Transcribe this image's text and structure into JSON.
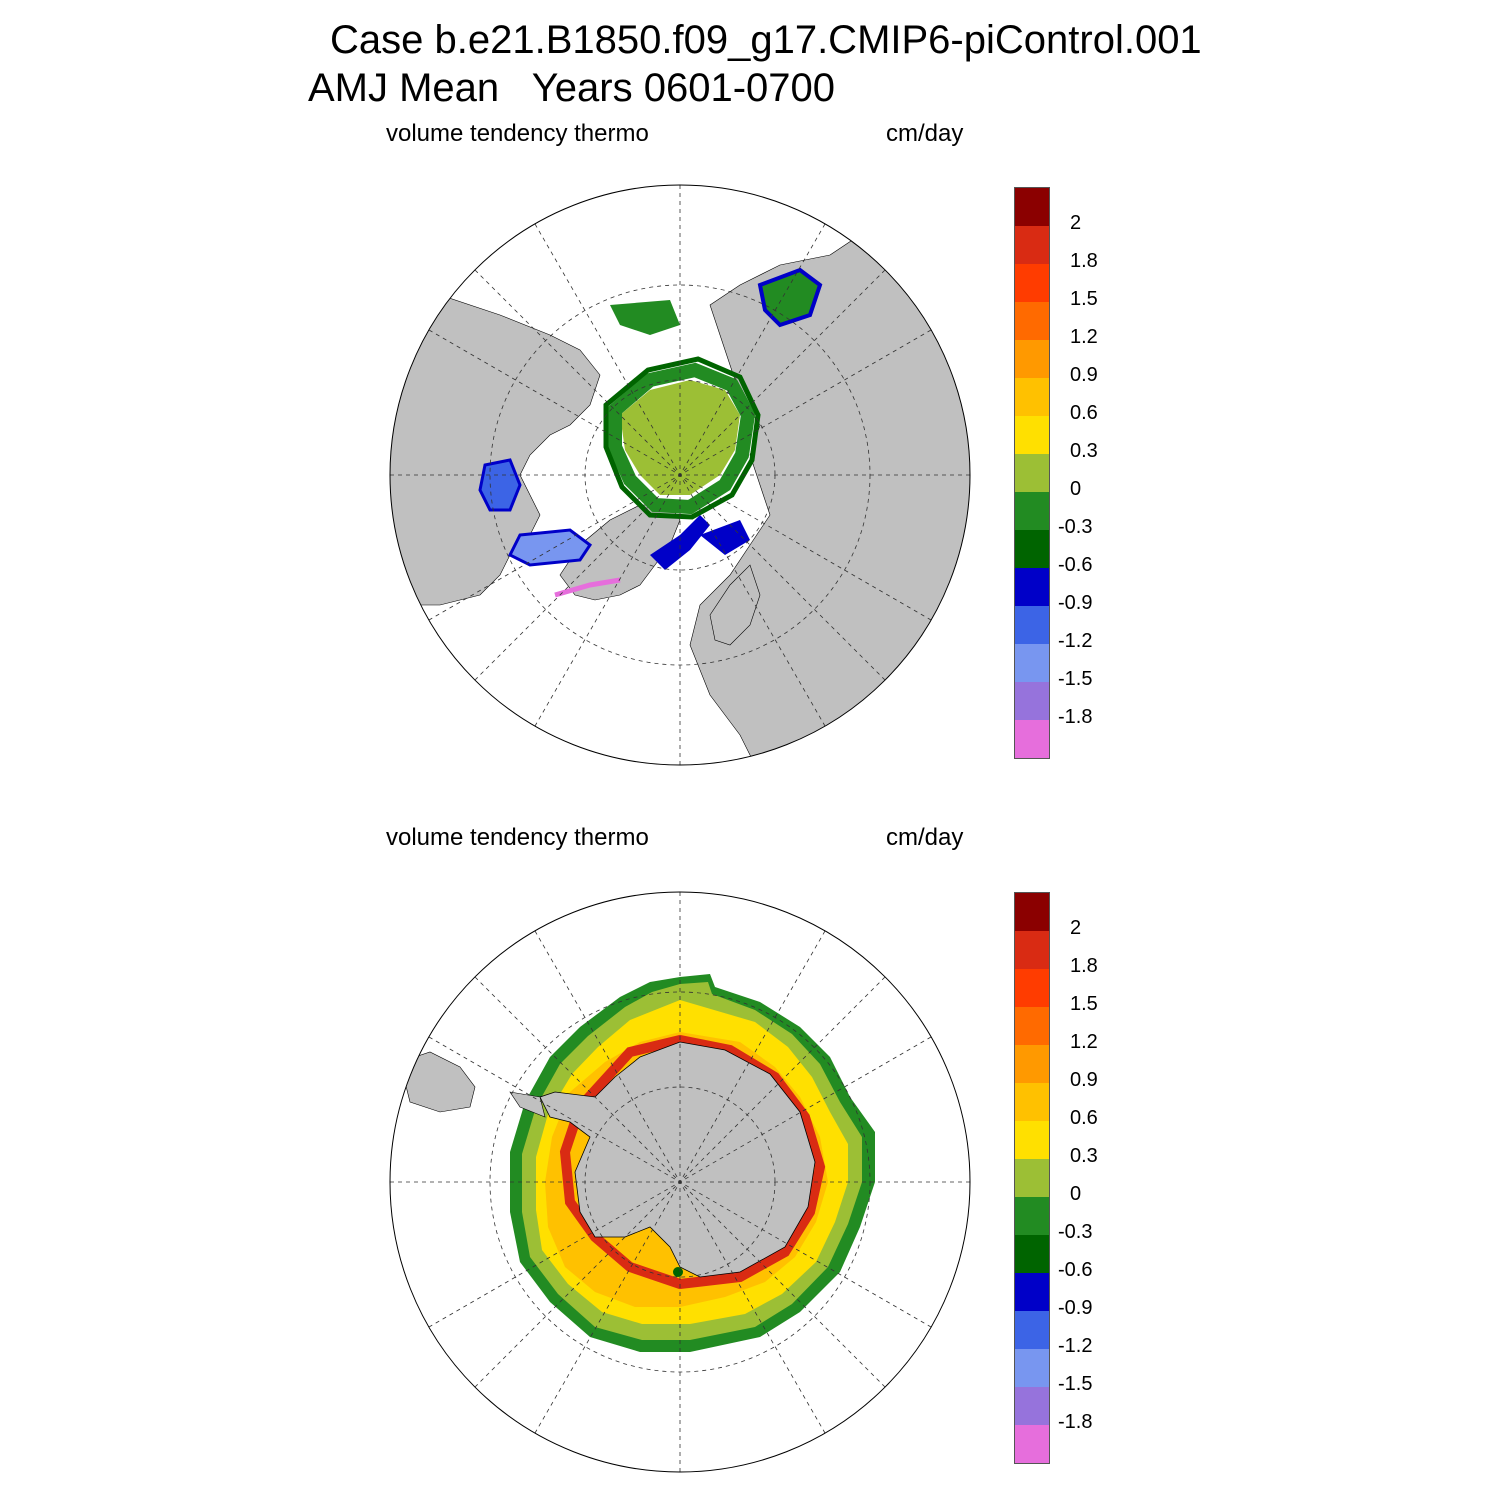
{
  "title": {
    "line1": "Case b.e21.B1850.f09_g17.CMIP6-piControl.001",
    "line2": "AMJ Mean   Years 0601-0700"
  },
  "panels": [
    {
      "hemisphere": "north",
      "variable_label": "volume tendency thermo",
      "units_label": "cm/day"
    },
    {
      "hemisphere": "south",
      "variable_label": "volume tendency thermo",
      "units_label": "cm/day"
    }
  ],
  "colorbar": {
    "colors": [
      "#8b0000",
      "#d92b13",
      "#ff3c00",
      "#ff6a00",
      "#ff9900",
      "#ffc100",
      "#ffe000",
      "#9cbf35",
      "#228b22",
      "#006400",
      "#0000c8",
      "#3c64e6",
      "#7896f0",
      "#9673dc",
      "#e66edc"
    ],
    "labels": [
      "2",
      "1.8",
      "1.5",
      "1.2",
      "0.9",
      "0.6",
      "0.3",
      "0",
      "-0.3",
      "-0.6",
      "-0.9",
      "-1.2",
      "-1.5",
      "-1.8"
    ]
  },
  "map_style": {
    "land_color": "#c0c0c0",
    "ocean_color": "#ffffff",
    "grid": "dashed"
  }
}
